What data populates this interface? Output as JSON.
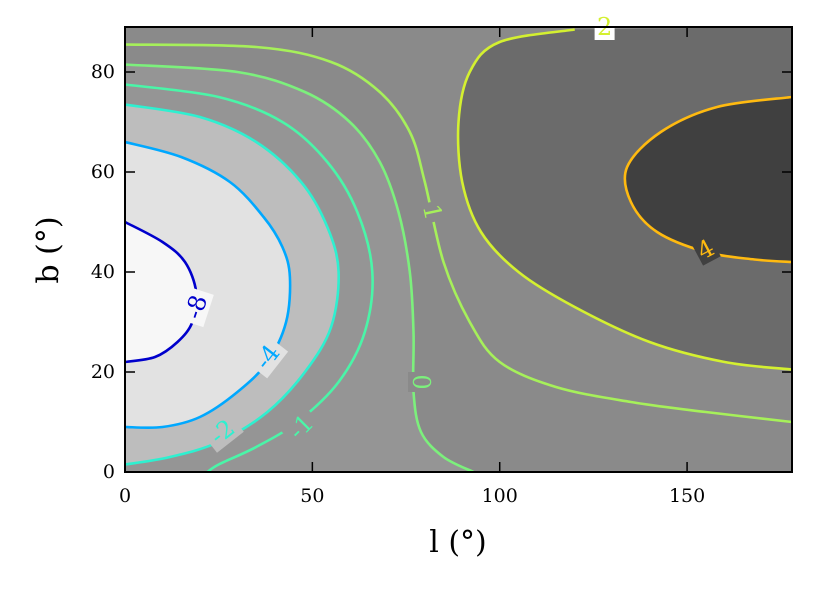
{
  "chart_data": {
    "type": "contour",
    "title": "",
    "xlabel": "l (°)",
    "ylabel": "b (°)",
    "xlim": [
      0,
      178
    ],
    "ylim": [
      0,
      89
    ],
    "x_ticks": [
      0,
      50,
      100,
      150
    ],
    "y_ticks": [
      0,
      20,
      40,
      60,
      80
    ],
    "x_tick_labels": [
      "0",
      "50",
      "100",
      "150"
    ],
    "y_tick_labels": [
      "0",
      "20",
      "40",
      "60",
      "80"
    ],
    "grid": false,
    "legend": "none",
    "filled_regions": [
      {
        "range": "< -8",
        "color": "#f7f7f7"
      },
      {
        "range": "-8 to -4",
        "color": "#e2e2e2"
      },
      {
        "range": "-4 to -2",
        "color": "#bdbdbd"
      },
      {
        "range": "-2 to 0",
        "color": "#959595"
      },
      {
        "range": "0 to 2",
        "color": "#8a8a8a"
      },
      {
        "range": "2 to 4",
        "color": "#6b6b6b"
      },
      {
        "range": "> 4",
        "color": "#404040"
      }
    ],
    "contours": [
      {
        "level": "-8",
        "color": "#0000cc",
        "points": [
          [
            0,
            50
          ],
          [
            10,
            46
          ],
          [
            16,
            42
          ],
          [
            19,
            36
          ],
          [
            18,
            30
          ],
          [
            14,
            26
          ],
          [
            8,
            23
          ],
          [
            0,
            22
          ]
        ]
      },
      {
        "level": "-4",
        "color": "#00a8ff",
        "points": [
          [
            0,
            66
          ],
          [
            15,
            63
          ],
          [
            28,
            58
          ],
          [
            37,
            51
          ],
          [
            42,
            45
          ],
          [
            44,
            39
          ],
          [
            43,
            30
          ],
          [
            38,
            22
          ],
          [
            30,
            16
          ],
          [
            20,
            11
          ],
          [
            10,
            9
          ],
          [
            0,
            9
          ]
        ]
      },
      {
        "level": "-2",
        "color": "#2ef0d0",
        "points": [
          [
            0,
            73.5
          ],
          [
            20,
            71
          ],
          [
            35,
            66
          ],
          [
            47,
            58
          ],
          [
            54,
            49
          ],
          [
            57,
            40
          ],
          [
            55,
            29
          ],
          [
            48,
            20
          ],
          [
            38,
            12
          ],
          [
            25,
            6
          ],
          [
            12,
            3
          ],
          [
            0,
            1.5
          ]
        ]
      },
      {
        "level": "-1",
        "color": "#4af5a8",
        "points": [
          [
            0,
            77.5
          ],
          [
            25,
            75
          ],
          [
            42,
            70
          ],
          [
            54,
            62
          ],
          [
            62,
            52
          ],
          [
            66,
            40
          ],
          [
            64,
            28
          ],
          [
            57,
            18
          ],
          [
            46,
            10
          ],
          [
            35,
            5
          ],
          [
            25,
            1.5
          ],
          [
            22,
            0
          ]
        ]
      },
      {
        "level": "0",
        "color": "#7cf07c",
        "points": [
          [
            0,
            81.5
          ],
          [
            30,
            80
          ],
          [
            48,
            76
          ],
          [
            60,
            70
          ],
          [
            68,
            62
          ],
          [
            73,
            52
          ],
          [
            76,
            40
          ],
          [
            77,
            28
          ],
          [
            77,
            16
          ],
          [
            79,
            8
          ],
          [
            85,
            3
          ],
          [
            93,
            0
          ]
        ]
      },
      {
        "level": "1",
        "color": "#a6f05a",
        "points": [
          [
            0,
            85.5
          ],
          [
            35,
            85
          ],
          [
            55,
            82
          ],
          [
            68,
            76
          ],
          [
            76,
            68
          ],
          [
            80,
            58
          ],
          [
            85,
            42
          ],
          [
            92,
            30
          ],
          [
            100,
            22
          ],
          [
            115,
            17
          ],
          [
            135,
            14
          ],
          [
            155,
            12
          ],
          [
            178,
            10
          ]
        ]
      },
      {
        "level": "2",
        "color": "#d4f030",
        "points": [
          [
            120,
            88.5
          ],
          [
            100,
            86
          ],
          [
            92,
            80
          ],
          [
            89,
            70
          ],
          [
            90,
            58
          ],
          [
            95,
            48
          ],
          [
            105,
            40
          ],
          [
            120,
            33
          ],
          [
            140,
            26
          ],
          [
            160,
            22
          ],
          [
            178,
            20.5
          ]
        ]
      },
      {
        "level": "4",
        "color": "#ffba10",
        "points": [
          [
            178,
            75
          ],
          [
            158,
            73
          ],
          [
            143,
            68
          ],
          [
            134,
            61
          ],
          [
            135,
            54
          ],
          [
            142,
            48
          ],
          [
            155,
            44
          ],
          [
            168,
            42.5
          ],
          [
            178,
            42
          ]
        ]
      }
    ],
    "contour_labels": [
      {
        "text": "-8",
        "x": 19,
        "y": 33,
        "rotation": -72,
        "color": "#0000cc"
      },
      {
        "text": "-4",
        "x": 38,
        "y": 23,
        "rotation": -52,
        "color": "#00a8ff"
      },
      {
        "text": "-2",
        "x": 26,
        "y": 8,
        "rotation": -38,
        "color": "#2ef0d0"
      },
      {
        "text": "-1",
        "x": 47,
        "y": 9,
        "rotation": -45,
        "color": "#4af5a8"
      },
      {
        "text": "0",
        "x": 79,
        "y": 18,
        "rotation": 90,
        "color": "#7cf07c"
      },
      {
        "text": "1",
        "x": 82,
        "y": 52,
        "rotation": 78,
        "color": "#a6f05a"
      },
      {
        "text": "2",
        "x": 128,
        "y": 89,
        "rotation": 0,
        "color": "#d4f030"
      },
      {
        "text": "4",
        "x": 155,
        "y": 44.5,
        "rotation": -28,
        "color": "#ffba10"
      }
    ]
  }
}
